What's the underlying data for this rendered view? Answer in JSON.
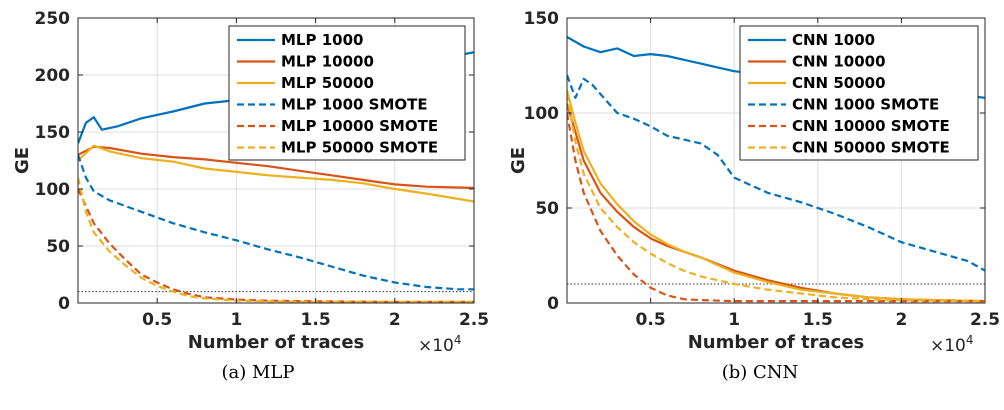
{
  "chart_data": [
    {
      "type": "line",
      "caption": "(a) MLP",
      "xlabel": "Number of traces",
      "ylabel": "GE",
      "x_multiplier": "×10",
      "x_multiplier_exp": "4",
      "xlim": [
        0,
        25000
      ],
      "ylim": [
        0,
        250
      ],
      "xticks": [
        5000,
        10000,
        15000,
        20000,
        25000
      ],
      "xtick_labels": [
        "0.5",
        "1",
        "1.5",
        "2",
        "2.5"
      ],
      "yticks": [
        0,
        50,
        100,
        150,
        200,
        250
      ],
      "ytick_labels": [
        "0",
        "50",
        "100",
        "150",
        "200",
        "250"
      ],
      "grid": true,
      "legend_position": "top-right",
      "threshold_line": 10,
      "series": [
        {
          "name": "MLP 1000",
          "color": "#0072BD",
          "dash": "solid",
          "x": [
            0,
            500,
            1000,
            1500,
            2500,
            4000,
            6000,
            8000,
            10000,
            12000,
            14000,
            16000,
            18000,
            20000,
            22000,
            23500,
            25000
          ],
          "y": [
            140,
            158,
            163,
            152,
            155,
            162,
            168,
            175,
            178,
            182,
            186,
            192,
            198,
            205,
            212,
            216,
            220
          ]
        },
        {
          "name": "MLP 10000",
          "color": "#D95319",
          "dash": "solid",
          "x": [
            0,
            1000,
            2000,
            4000,
            6000,
            8000,
            10000,
            12000,
            14000,
            16000,
            18000,
            20000,
            22000,
            25000
          ],
          "y": [
            130,
            137,
            136,
            131,
            128,
            126,
            123,
            120,
            116,
            112,
            108,
            104,
            102,
            101
          ]
        },
        {
          "name": "MLP 50000",
          "color": "#EDB120",
          "dash": "solid",
          "x": [
            0,
            1000,
            2000,
            4000,
            6000,
            8000,
            10000,
            12000,
            14000,
            16000,
            18000,
            20000,
            22000,
            25000
          ],
          "y": [
            125,
            138,
            133,
            127,
            124,
            118,
            115,
            112,
            110,
            108,
            105,
            100,
            96,
            89
          ]
        },
        {
          "name": "MLP 1000 SMOTE",
          "color": "#0072BD",
          "dash": "dashed",
          "x": [
            0,
            500,
            1000,
            2000,
            3000,
            4000,
            6000,
            8000,
            10000,
            12000,
            14000,
            16000,
            18000,
            20000,
            22000,
            24000,
            25000
          ],
          "y": [
            130,
            110,
            98,
            90,
            85,
            80,
            70,
            62,
            55,
            47,
            40,
            32,
            24,
            18,
            14,
            12,
            12
          ]
        },
        {
          "name": "MLP 10000 SMOTE",
          "color": "#D95319",
          "dash": "dashed",
          "x": [
            0,
            500,
            1000,
            2000,
            3000,
            4000,
            5000,
            6000,
            7000,
            8000,
            10000,
            12000,
            15000,
            20000,
            25000
          ],
          "y": [
            100,
            85,
            70,
            52,
            38,
            25,
            18,
            12,
            8,
            5,
            3,
            2,
            1.5,
            1,
            1
          ]
        },
        {
          "name": "MLP 50000 SMOTE",
          "color": "#EDB120",
          "dash": "dashed",
          "x": [
            0,
            500,
            1000,
            2000,
            3000,
            4000,
            5000,
            6000,
            7000,
            8000,
            10000,
            12000,
            15000,
            20000,
            25000
          ],
          "y": [
            110,
            80,
            62,
            45,
            33,
            22,
            15,
            10,
            6,
            4,
            2,
            1.5,
            1,
            1,
            1
          ]
        }
      ]
    },
    {
      "type": "line",
      "caption": "(b) CNN",
      "xlabel": "Number of traces",
      "ylabel": "GE",
      "x_multiplier": "×10",
      "x_multiplier_exp": "4",
      "xlim": [
        0,
        25000
      ],
      "ylim": [
        0,
        150
      ],
      "xticks": [
        5000,
        10000,
        15000,
        20000,
        25000
      ],
      "xtick_labels": [
        "0.5",
        "1",
        "1.5",
        "2",
        "2.5"
      ],
      "yticks": [
        0,
        50,
        100,
        150
      ],
      "ytick_labels": [
        "0",
        "50",
        "100",
        "150"
      ],
      "grid": true,
      "legend_position": "top-right",
      "threshold_line": 10,
      "series": [
        {
          "name": "CNN 1000",
          "color": "#0072BD",
          "dash": "solid",
          "x": [
            0,
            1000,
            2000,
            3000,
            4000,
            5000,
            6000,
            7000,
            8000,
            9000,
            10000,
            12000,
            14000,
            16000,
            18000,
            20000,
            22000,
            24000,
            25000
          ],
          "y": [
            140,
            135,
            132,
            134,
            130,
            131,
            130,
            128,
            126,
            124,
            122,
            120,
            117,
            115,
            113,
            112,
            111,
            109,
            108
          ]
        },
        {
          "name": "CNN 10000",
          "color": "#D95319",
          "dash": "solid",
          "x": [
            0,
            500,
            1000,
            2000,
            3000,
            4000,
            5000,
            6000,
            7000,
            8000,
            10000,
            12000,
            14000,
            16000,
            18000,
            20000,
            22000,
            25000
          ],
          "y": [
            105,
            90,
            75,
            58,
            48,
            40,
            34,
            30,
            27,
            24,
            17,
            12,
            8,
            5,
            3,
            2,
            1.5,
            1
          ]
        },
        {
          "name": "CNN 50000",
          "color": "#EDB120",
          "dash": "solid",
          "x": [
            0,
            500,
            1000,
            2000,
            3000,
            4000,
            5000,
            6000,
            7000,
            8000,
            10000,
            12000,
            14000,
            16000,
            18000,
            20000,
            22000,
            25000
          ],
          "y": [
            112,
            95,
            80,
            63,
            52,
            43,
            36,
            31,
            27,
            24,
            16,
            11,
            7,
            5,
            3,
            2,
            1.5,
            1
          ]
        },
        {
          "name": "CNN 1000 SMOTE",
          "color": "#0072BD",
          "dash": "dashed",
          "x": [
            0,
            500,
            1000,
            1500,
            2000,
            3000,
            4000,
            5000,
            6000,
            7000,
            8000,
            9000,
            10000,
            12000,
            14000,
            16000,
            18000,
            20000,
            22000,
            24000,
            25000
          ],
          "y": [
            120,
            108,
            118,
            115,
            110,
            100,
            97,
            93,
            88,
            86,
            84,
            78,
            66,
            58,
            53,
            47,
            40,
            32,
            27,
            22,
            17
          ]
        },
        {
          "name": "CNN 10000 SMOTE",
          "color": "#D95319",
          "dash": "dashed",
          "x": [
            0,
            500,
            1000,
            2000,
            3000,
            4000,
            5000,
            6000,
            7000,
            8000,
            10000,
            12000,
            15000,
            20000,
            25000
          ],
          "y": [
            100,
            75,
            58,
            38,
            25,
            15,
            8,
            4,
            2,
            1.5,
            1,
            1,
            1,
            1,
            1
          ]
        },
        {
          "name": "CNN 50000 SMOTE",
          "color": "#EDB120",
          "dash": "dashed",
          "x": [
            0,
            500,
            1000,
            2000,
            3000,
            4000,
            5000,
            6000,
            7000,
            8000,
            9000,
            10000,
            12000,
            14000,
            16000,
            18000,
            20000,
            25000
          ],
          "y": [
            110,
            85,
            68,
            50,
            40,
            32,
            26,
            21,
            17,
            14,
            12,
            10,
            7,
            5,
            3,
            2,
            1.5,
            1
          ]
        }
      ]
    }
  ]
}
